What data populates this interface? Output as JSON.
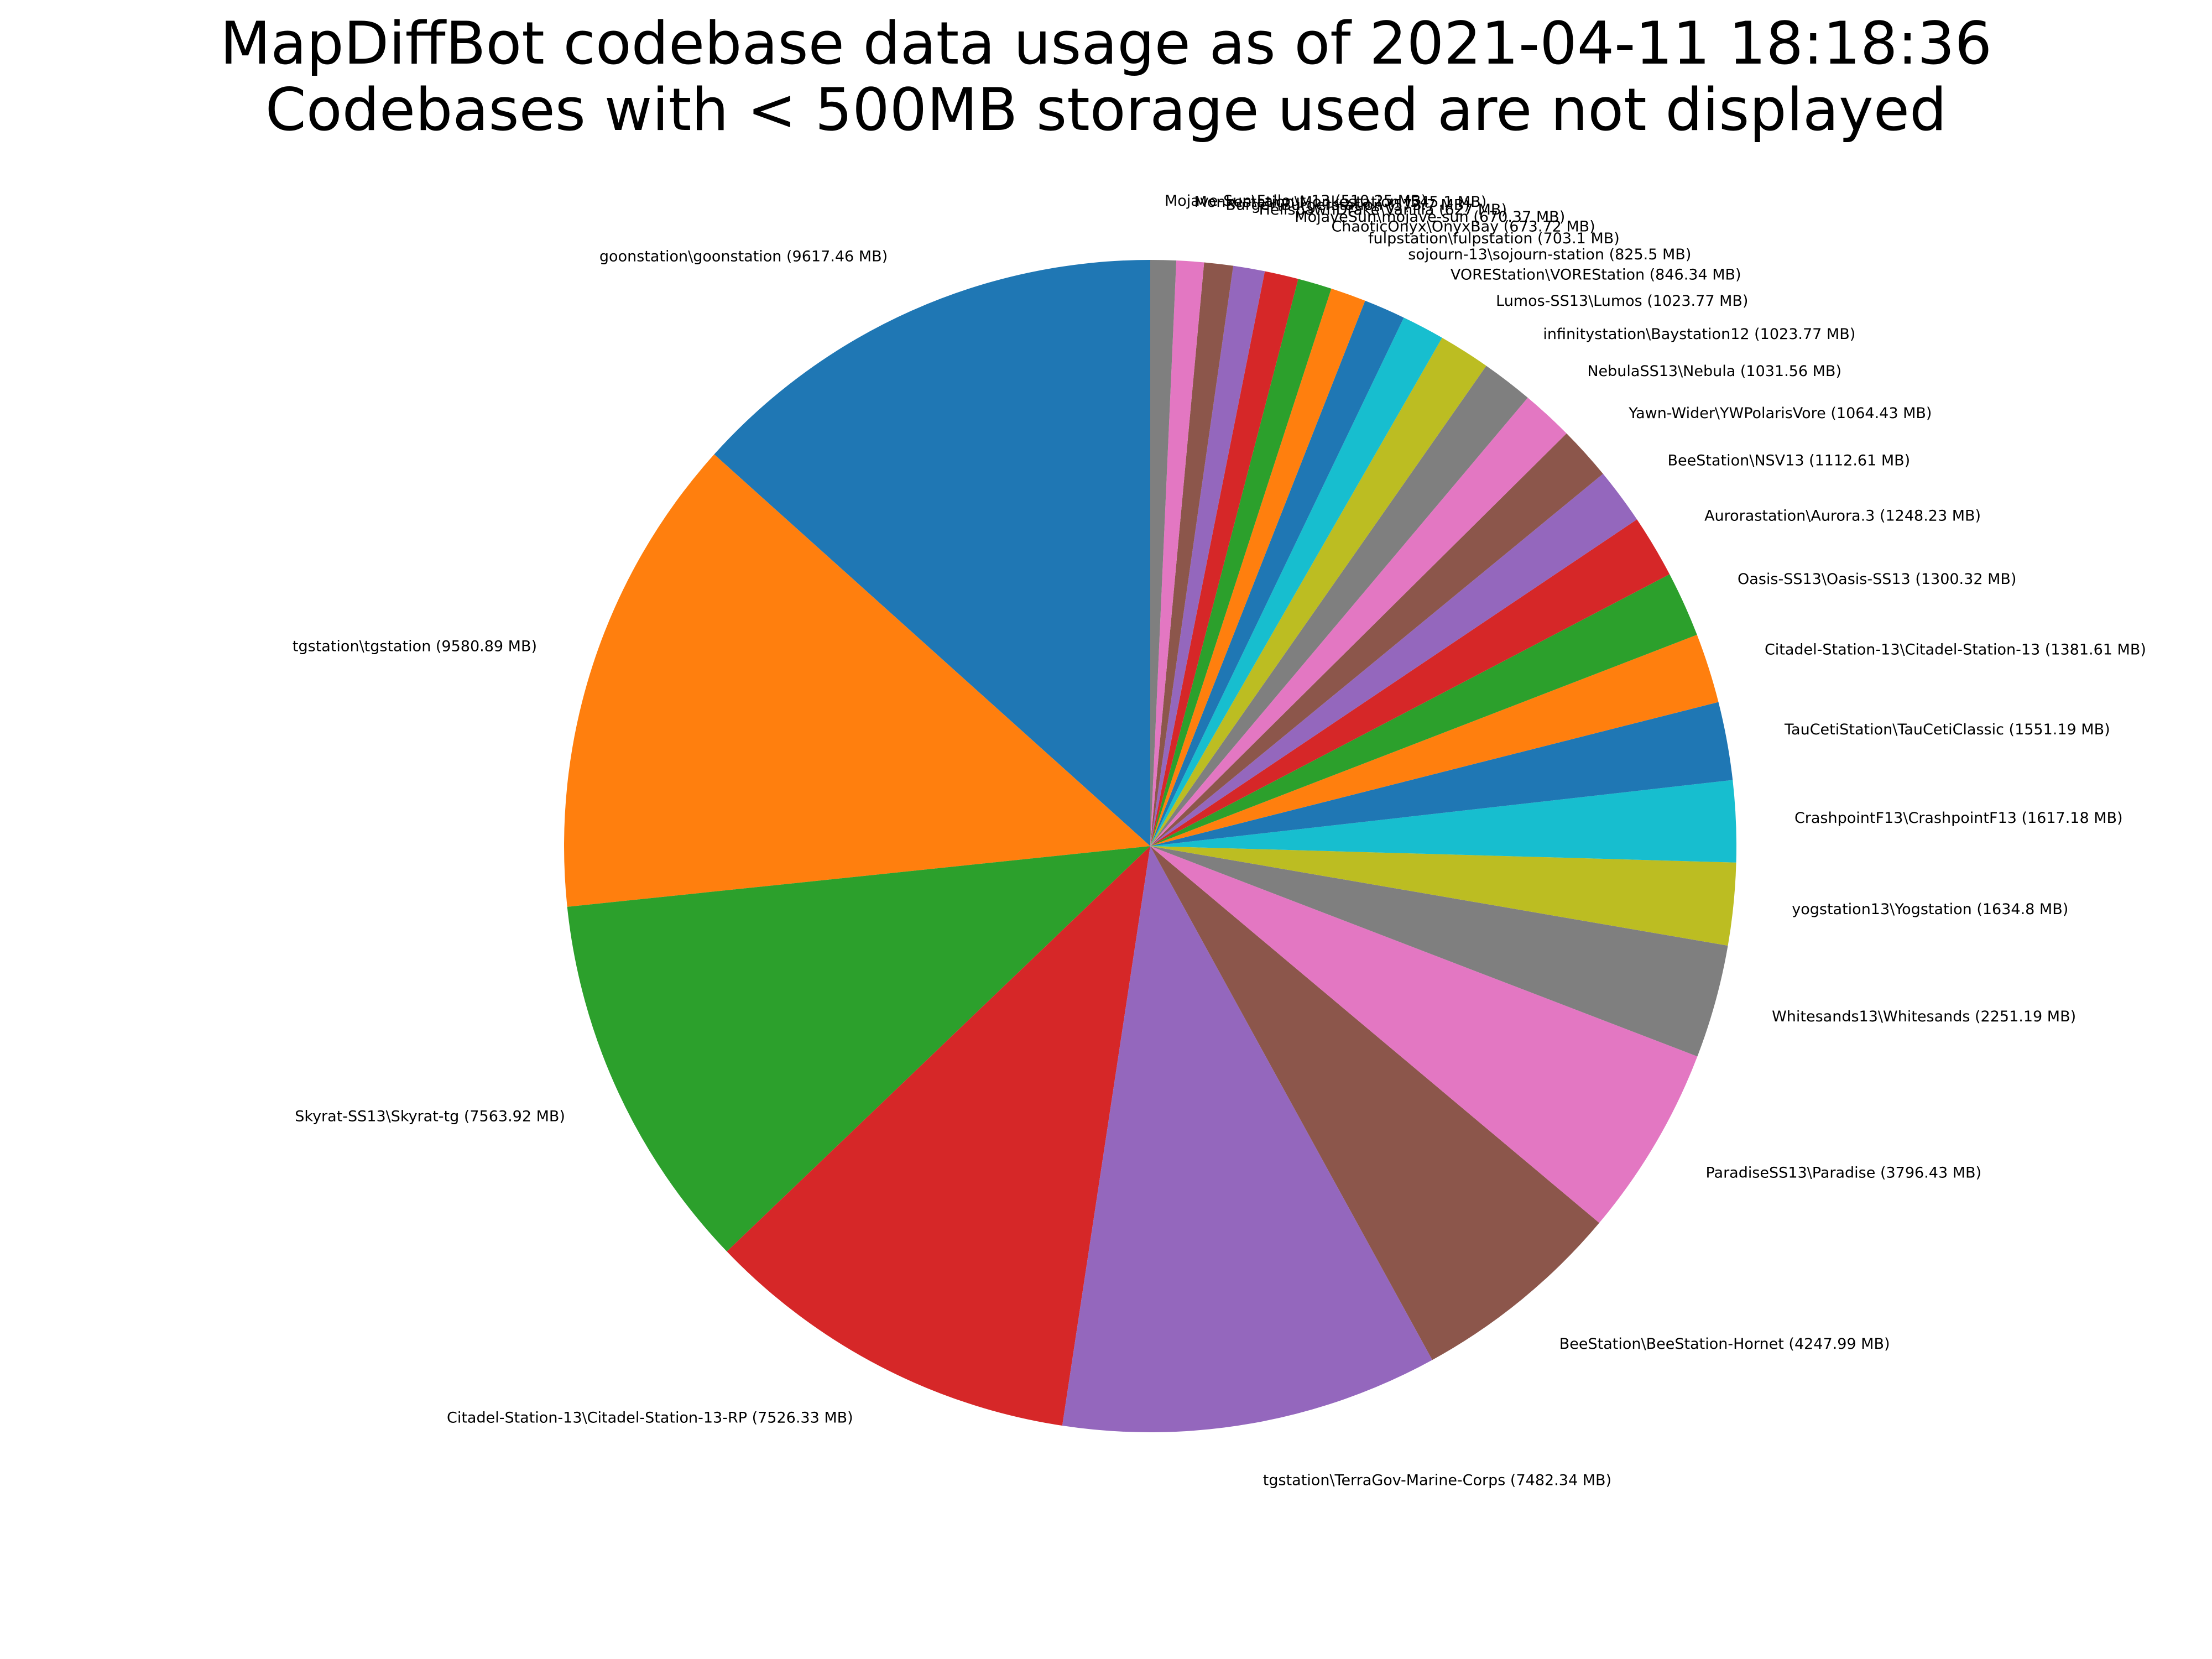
{
  "chart_data": {
    "type": "pie",
    "title_lines": [
      "MapDiffBot codebase data usage as of 2021-04-11 18:18:36",
      "Codebases with < 500MB storage used are not displayed"
    ],
    "start_angle_deg": 90,
    "direction": "counterclockwise",
    "slices": [
      {
        "label": "goonstation\\goonstation (9617.46 MB)",
        "value": 9617.46,
        "color": "#1f77b4"
      },
      {
        "label": "tgstation\\tgstation (9580.89 MB)",
        "value": 9580.89,
        "color": "#ff7f0e"
      },
      {
        "label": "Skyrat-SS13\\Skyrat-tg (7563.92 MB)",
        "value": 7563.92,
        "color": "#2ca02c"
      },
      {
        "label": "Citadel-Station-13\\Citadel-Station-13-RP (7526.33 MB)",
        "value": 7526.33,
        "color": "#d62728"
      },
      {
        "label": "tgstation\\TerraGov-Marine-Corps (7482.34 MB)",
        "value": 7482.34,
        "color": "#9467bd"
      },
      {
        "label": "BeeStation\\BeeStation-Hornet (4247.99 MB)",
        "value": 4247.99,
        "color": "#8c564b"
      },
      {
        "label": "ParadiseSS13\\Paradise (3796.43 MB)",
        "value": 3796.43,
        "color": "#e377c2"
      },
      {
        "label": "Whitesands13\\Whitesands (2251.19 MB)",
        "value": 2251.19,
        "color": "#7f7f7f"
      },
      {
        "label": "yogstation13\\Yogstation (1634.8 MB)",
        "value": 1634.8,
        "color": "#bcbd22"
      },
      {
        "label": "CrashpointF13\\CrashpointF13 (1617.18 MB)",
        "value": 1617.18,
        "color": "#17becf"
      },
      {
        "label": "TauCetiStation\\TauCetiClassic (1551.19 MB)",
        "value": 1551.19,
        "color": "#1f77b4"
      },
      {
        "label": "Citadel-Station-13\\Citadel-Station-13 (1381.61 MB)",
        "value": 1381.61,
        "color": "#ff7f0e"
      },
      {
        "label": "Oasis-SS13\\Oasis-SS13 (1300.32 MB)",
        "value": 1300.32,
        "color": "#2ca02c"
      },
      {
        "label": "Aurorastation\\Aurora.3 (1248.23 MB)",
        "value": 1248.23,
        "color": "#d62728"
      },
      {
        "label": "BeeStation\\NSV13 (1112.61 MB)",
        "value": 1112.61,
        "color": "#9467bd"
      },
      {
        "label": "Yawn-Wider\\YWPolarisVore (1064.43 MB)",
        "value": 1064.43,
        "color": "#8c564b"
      },
      {
        "label": "NebulaSS13\\Nebula (1031.56 MB)",
        "value": 1031.56,
        "color": "#e377c2"
      },
      {
        "label": "infinitystation\\Baystation12 (1023.77 MB)",
        "value": 1023.77,
        "color": "#7f7f7f"
      },
      {
        "label": "Lumos-SS13\\Lumos (1023.77 MB)",
        "value": 1023.77,
        "color": "#bcbd22"
      },
      {
        "label": "VOREStation\\VOREStation (846.34 MB)",
        "value": 846.34,
        "color": "#17becf"
      },
      {
        "label": "sojourn-13\\sojourn-station (825.5 MB)",
        "value": 825.5,
        "color": "#1f77b4"
      },
      {
        "label": "fulpstation\\fulpstation (703.1 MB)",
        "value": 703.1,
        "color": "#ff7f0e"
      },
      {
        "label": "ChaoticOnyx\\OnyxBay (673.72 MB)",
        "value": 673.72,
        "color": "#2ca02c"
      },
      {
        "label": "MojaveSun\\mojave-sun (670.37 MB)",
        "value": 670.37,
        "color": "#d62728"
      },
      {
        "label": "HellspawnDrake\\Vanilla (627 MB)",
        "value": 627,
        "color": "#9467bd"
      },
      {
        "label": "Burger\\Burgerstation (573.7 MB)",
        "value": 573.7,
        "color": "#8c564b"
      },
      {
        "label": "Monkestation\\Monkestation (545.1 MB)",
        "value": 545.1,
        "color": "#e377c2"
      },
      {
        "label": "Mojave-Sun\\Fallout-13 (510.25 MB)",
        "value": 510.25,
        "color": "#7f7f7f"
      }
    ]
  }
}
